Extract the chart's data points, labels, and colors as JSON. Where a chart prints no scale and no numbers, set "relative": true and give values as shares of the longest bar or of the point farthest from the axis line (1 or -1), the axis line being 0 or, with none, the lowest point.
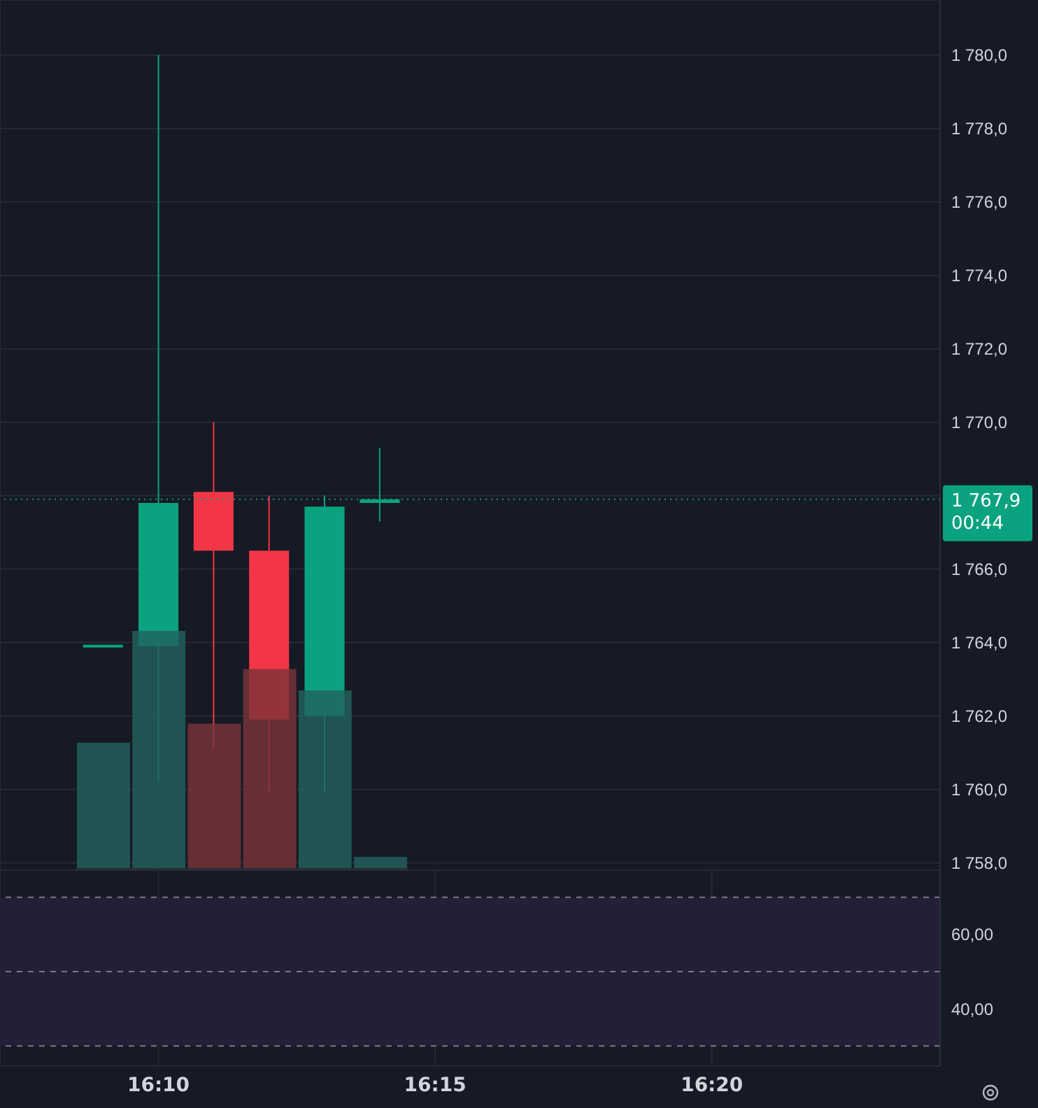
{
  "chart_data": [
    {
      "type": "candlestick",
      "x": [
        16.15,
        16.1667,
        16.1833,
        16.2,
        16.2167,
        16.2333
      ],
      "ohlc": [
        [
          1763.9,
          1763.9,
          1763.9,
          1763.9
        ],
        [
          1763.9,
          1780.0,
          1760.2,
          1767.8
        ],
        [
          1768.1,
          1770.0,
          1761.1,
          1766.5
        ],
        [
          1766.5,
          1768.0,
          1759.9,
          1761.9
        ],
        [
          1762.0,
          1768.0,
          1759.9,
          1767.7
        ],
        [
          1767.8,
          1769.3,
          1767.3,
          1767.9
        ]
      ],
      "colors": [
        "#0ba27f",
        "#0ba27f",
        "#f23645",
        "#f23645",
        "#0ba27f",
        "#0ba27f"
      ],
      "xlim": [
        16.119,
        16.402
      ],
      "xticks": [
        {
          "value": 16.1667,
          "label": null
        },
        {
          "value": 16.25,
          "label": null
        },
        {
          "value": 16.3333,
          "label": null
        }
      ],
      "ylim": [
        1757.8,
        1781.5
      ],
      "yticks": [
        {
          "value": 1758,
          "label": "1 758,0"
        },
        {
          "value": 1760,
          "label": "1 760,0"
        },
        {
          "value": 1762,
          "label": "1 762,0"
        },
        {
          "value": 1764,
          "label": "1 764,0"
        },
        {
          "value": 1766,
          "label": "1 766,0"
        },
        {
          "value": 1768,
          "label": null
        },
        {
          "value": 1770,
          "label": "1 770,0"
        },
        {
          "value": 1772,
          "label": "1 772,0"
        },
        {
          "value": 1774,
          "label": "1 774,0"
        },
        {
          "value": 1776,
          "label": "1 776,0"
        },
        {
          "value": 1778,
          "label": "1 778,0"
        },
        {
          "value": 1780,
          "label": "1 780,0"
        }
      ],
      "ref_lines": [
        {
          "axis": "y",
          "value": 1767.9,
          "label": "1 767,9",
          "color": "#0ba27f",
          "line_style": "dotted"
        }
      ],
      "annotations": [
        "00:44"
      ],
      "grid": true,
      "tick_labels": "y"
    },
    {
      "type": "line",
      "xlim": [
        16.119,
        16.402
      ],
      "xticks": [
        {
          "value": 16.1667,
          "label": "16:10"
        },
        {
          "value": 16.25,
          "label": "16:15"
        },
        {
          "value": 16.3333,
          "label": "16:20"
        }
      ],
      "ylim": [
        24.6,
        77.3
      ],
      "yticks": [
        {
          "value": 40,
          "label": "40,00"
        },
        {
          "value": 60,
          "label": "60,00"
        }
      ],
      "bands": [
        {
          "axis": "y",
          "from": 30,
          "to": 70,
          "color": "#221f36"
        }
      ],
      "ref_lines": [
        {
          "axis": "y",
          "value": 70,
          "line_style": "dashed",
          "color": "#787b86"
        },
        {
          "axis": "y",
          "value": 50,
          "line_style": "dashed",
          "color": "#787b86"
        },
        {
          "axis": "y",
          "value": 30,
          "line_style": "dashed",
          "color": "#787b86"
        }
      ],
      "grid": true
    },
    {
      "type": "bar",
      "relative": true,
      "categories": [
        null,
        null,
        null,
        null,
        null,
        null
      ],
      "values": [
        0.53,
        1,
        0.61,
        0.84,
        0.75,
        0.05
      ],
      "colors": [
        "#22635e",
        "#22635e",
        "#7b3539",
        "#7b3539",
        "#22635e",
        "#22635e"
      ],
      "tick_labels": false
    }
  ]
}
